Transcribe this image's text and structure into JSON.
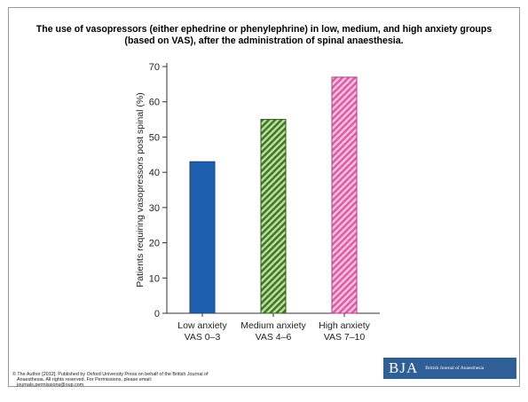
{
  "slide": {
    "title": "The use of vasopressors (either ephedrine or phenylephrine) in low, medium, and high anxiety groups (based on VAS), after the administration of spinal anaesthesia.",
    "copyright_line1": "© The Author [2012]. Published by Oxford University Press on behalf of the British Journal of",
    "copyright_line2": "Anaesthesia. All rights reserved. For Permissions, please email:",
    "copyright_line3": "journals.permissions@oup.com",
    "logo_mark": "BJA",
    "logo_text": "British Journal of Anaesthesia"
  },
  "chart_data": {
    "type": "bar",
    "categories": [
      "Low anxiety\nVAS 0–3",
      "Medium anxiety\nVAS 4–6",
      "High anxiety\nVAS 7–10"
    ],
    "values": [
      43,
      55,
      67
    ],
    "ylabel": "Patients requiring vasopressors post spinal (%)",
    "ylim": [
      0,
      70
    ],
    "yticks": [
      0,
      10,
      20,
      30,
      40,
      50,
      60,
      70
    ],
    "bar_colors": [
      "#1f5fb0",
      "#4f8a2e",
      "#e27ab4"
    ],
    "bar_patterns": [
      "solid",
      "hatch",
      "hatch"
    ],
    "grid": false
  }
}
